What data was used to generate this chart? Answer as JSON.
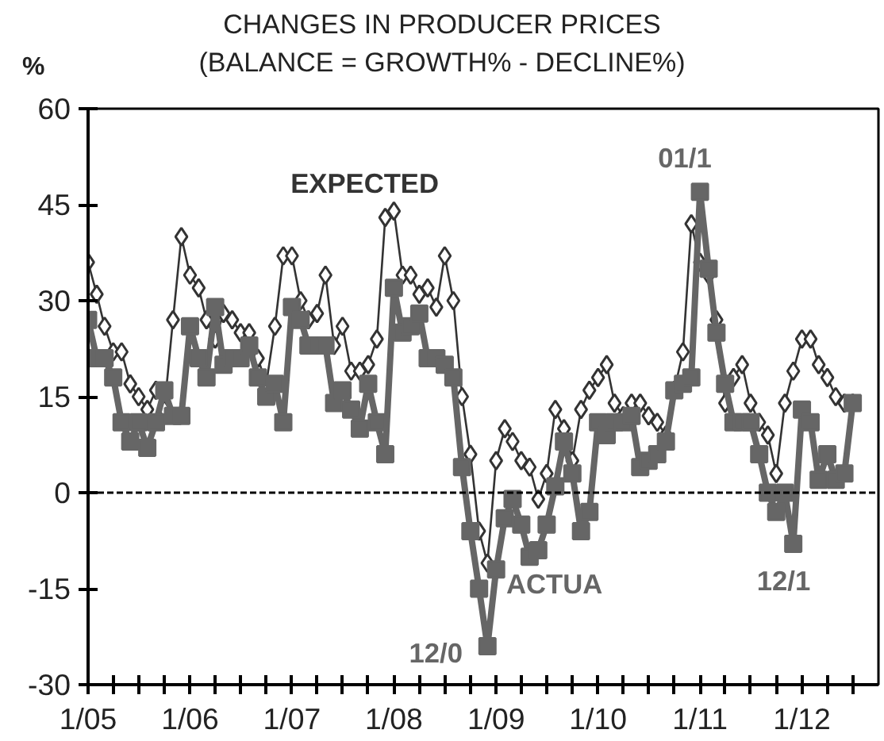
{
  "chart_data": {
    "type": "line",
    "title": "CHANGES IN PRODUCER PRICES",
    "subtitle": "(BALANCE = GROWTH% - DECLINE%)",
    "ylabel": "%",
    "x": [
      "2005-01",
      "2005-02",
      "2005-03",
      "2005-04",
      "2005-05",
      "2005-06",
      "2005-07",
      "2005-08",
      "2005-09",
      "2005-10",
      "2005-11",
      "2005-12",
      "2006-01",
      "2006-02",
      "2006-03",
      "2006-04",
      "2006-05",
      "2006-06",
      "2006-07",
      "2006-08",
      "2006-09",
      "2006-10",
      "2006-11",
      "2006-12",
      "2007-01",
      "2007-02",
      "2007-03",
      "2007-04",
      "2007-05",
      "2007-06",
      "2007-07",
      "2007-08",
      "2007-09",
      "2007-10",
      "2007-11",
      "2007-12",
      "2008-01",
      "2008-02",
      "2008-03",
      "2008-04",
      "2008-05",
      "2008-06",
      "2008-07",
      "2008-08",
      "2008-09",
      "2008-10",
      "2008-11",
      "2008-12",
      "2009-01",
      "2009-02",
      "2009-03",
      "2009-04",
      "2009-05",
      "2009-06",
      "2009-07",
      "2009-08",
      "2009-09",
      "2009-10",
      "2009-11",
      "2009-12",
      "2010-01",
      "2010-02",
      "2010-03",
      "2010-04",
      "2010-05",
      "2010-06",
      "2010-07",
      "2010-08",
      "2010-09",
      "2010-10",
      "2010-11",
      "2010-12",
      "2011-01",
      "2011-02",
      "2011-03",
      "2011-04",
      "2011-05",
      "2011-06",
      "2011-07",
      "2011-08",
      "2011-09",
      "2011-10",
      "2011-11",
      "2011-12",
      "2012-01",
      "2012-02",
      "2012-03",
      "2012-04",
      "2012-05",
      "2012-06",
      "2012-07"
    ],
    "series": [
      {
        "color": "#333333",
        "marker": "diamond",
        "values": [
          36,
          31,
          26,
          22,
          22,
          17,
          15,
          13,
          16,
          13,
          27,
          40,
          34,
          32,
          27,
          24,
          28,
          27,
          25,
          25,
          21,
          17,
          26,
          37,
          37,
          30,
          27,
          28,
          34,
          23,
          26,
          19,
          19,
          20,
          24,
          43,
          44,
          34,
          34,
          31,
          32,
          29,
          37,
          30,
          15,
          6,
          -6,
          -11,
          5,
          10,
          8,
          5,
          4,
          -1,
          3,
          13,
          10,
          5,
          13,
          16,
          18,
          20,
          14,
          12,
          14,
          14,
          12,
          11,
          9,
          16,
          22,
          42,
          36,
          34,
          27,
          14,
          18,
          20,
          14,
          11,
          9,
          3,
          14,
          19,
          24,
          24,
          20,
          18,
          15,
          14,
          14
        ]
      },
      {
        "color": "#666666",
        "marker": "square",
        "values": [
          27,
          21,
          21,
          18,
          11,
          8,
          11,
          7,
          11,
          16,
          12,
          12,
          26,
          21,
          18,
          29,
          20,
          21,
          21,
          23,
          18,
          15,
          17,
          11,
          29,
          27,
          23,
          23,
          23,
          14,
          16,
          13,
          10,
          17,
          11,
          6,
          32,
          25,
          26,
          28,
          21,
          21,
          20,
          18,
          4,
          -6,
          -15,
          -24,
          -12,
          -4,
          -1,
          -5,
          -10,
          -9,
          -5,
          1,
          8,
          3,
          -6,
          -3,
          11,
          9,
          11,
          11,
          12,
          4,
          5,
          6,
          8,
          16,
          17,
          18,
          47,
          35,
          25,
          17,
          11,
          11,
          11,
          6,
          0,
          -3,
          0,
          -8,
          13,
          11,
          2,
          6,
          2,
          3,
          14
        ]
      }
    ],
    "xlim": [
      "2005-01",
      "2012-10"
    ],
    "xticks": [
      {
        "value": "2005-01",
        "label": "1/05"
      },
      {
        "value": "2005-04",
        "label": null
      },
      {
        "value": "2005-07",
        "label": null
      },
      {
        "value": "2005-10",
        "label": null
      },
      {
        "value": "2006-01",
        "label": "1/06"
      },
      {
        "value": "2006-04",
        "label": null
      },
      {
        "value": "2006-07",
        "label": null
      },
      {
        "value": "2006-10",
        "label": null
      },
      {
        "value": "2007-01",
        "label": "1/07"
      },
      {
        "value": "2007-04",
        "label": null
      },
      {
        "value": "2007-07",
        "label": null
      },
      {
        "value": "2007-10",
        "label": null
      },
      {
        "value": "2008-01",
        "label": "1/08"
      },
      {
        "value": "2008-04",
        "label": null
      },
      {
        "value": "2008-07",
        "label": null
      },
      {
        "value": "2008-10",
        "label": null
      },
      {
        "value": "2009-01",
        "label": "1/09"
      },
      {
        "value": "2009-04",
        "label": null
      },
      {
        "value": "2009-07",
        "label": null
      },
      {
        "value": "2009-10",
        "label": null
      },
      {
        "value": "2010-01",
        "label": "1/10"
      },
      {
        "value": "2010-04",
        "label": null
      },
      {
        "value": "2010-07",
        "label": null
      },
      {
        "value": "2010-10",
        "label": null
      },
      {
        "value": "2011-01",
        "label": "1/11"
      },
      {
        "value": "2011-04",
        "label": null
      },
      {
        "value": "2011-07",
        "label": null
      },
      {
        "value": "2011-10",
        "label": null
      },
      {
        "value": "2012-01",
        "label": "1/12"
      },
      {
        "value": "2012-04",
        "label": null
      },
      {
        "value": "2012-07",
        "label": null
      }
    ],
    "ylim": [
      -30,
      60
    ],
    "yticks": [
      -30,
      -15,
      0,
      15,
      30,
      45,
      60
    ],
    "ref_lines": [
      {
        "axis": "y",
        "value": 0,
        "color": "#000000",
        "line_style": "dashed"
      }
    ],
    "annotations": [
      "EXPECTED",
      "ACTUA",
      "01/1",
      "12/0",
      "12/1"
    ],
    "grid": false
  }
}
